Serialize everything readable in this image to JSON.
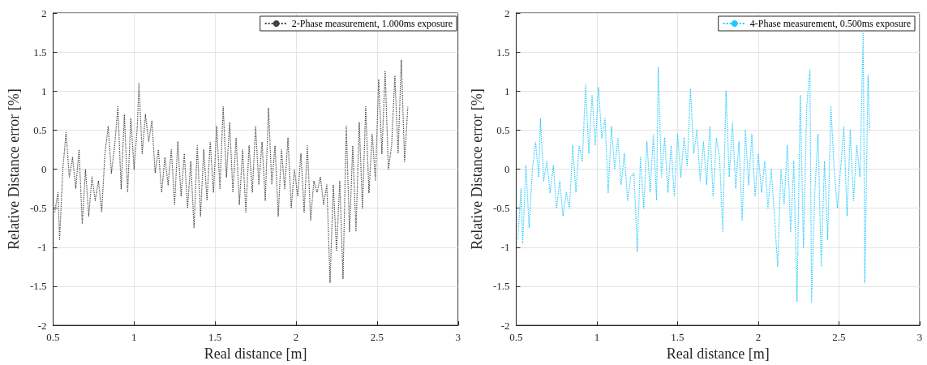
{
  "chart_data": [
    {
      "type": "line",
      "xlabel": "Real distance [m]",
      "ylabel": "Relative Distance error [%]",
      "xlim": [
        0.5,
        3
      ],
      "xticks": [
        0.5,
        1,
        1.5,
        2,
        2.5,
        3
      ],
      "ylim": [
        -2,
        2
      ],
      "yticks": [
        -2,
        -1.5,
        -1,
        -0.5,
        0,
        0.5,
        1,
        1.5,
        2
      ],
      "grid": true,
      "legend": "top right",
      "line_style": "dotted",
      "series": [
        {
          "name": "2-Phase measurement, 1.000ms exposure",
          "color": "#404040",
          "x": [
            0.51,
            0.53,
            0.54,
            0.56,
            0.58,
            0.6,
            0.62,
            0.64,
            0.66,
            0.68,
            0.7,
            0.72,
            0.74,
            0.76,
            0.78,
            0.8,
            0.82,
            0.84,
            0.86,
            0.88,
            0.9,
            0.92,
            0.94,
            0.96,
            0.98,
            1.0,
            1.02,
            1.03,
            1.05,
            1.07,
            1.09,
            1.11,
            1.13,
            1.15,
            1.17,
            1.19,
            1.21,
            1.23,
            1.25,
            1.27,
            1.29,
            1.31,
            1.33,
            1.35,
            1.37,
            1.39,
            1.41,
            1.43,
            1.45,
            1.47,
            1.49,
            1.51,
            1.53,
            1.55,
            1.57,
            1.59,
            1.61,
            1.63,
            1.65,
            1.67,
            1.69,
            1.71,
            1.73,
            1.75,
            1.77,
            1.79,
            1.81,
            1.83,
            1.85,
            1.87,
            1.89,
            1.91,
            1.93,
            1.95,
            1.97,
            1.99,
            2.01,
            2.03,
            2.05,
            2.07,
            2.09,
            2.11,
            2.13,
            2.15,
            2.17,
            2.19,
            2.21,
            2.23,
            2.25,
            2.27,
            2.29,
            2.31,
            2.33,
            2.35,
            2.37,
            2.39,
            2.41,
            2.43,
            2.45,
            2.47,
            2.49,
            2.51,
            2.53,
            2.55,
            2.57,
            2.59,
            2.61,
            2.63,
            2.65,
            2.67,
            2.69
          ],
          "values": [
            -0.55,
            -0.3,
            -0.9,
            0.0,
            0.47,
            -0.1,
            0.15,
            -0.25,
            0.25,
            -0.7,
            0.0,
            -0.6,
            -0.1,
            -0.4,
            -0.15,
            -0.55,
            0.2,
            0.55,
            -0.05,
            0.3,
            0.8,
            -0.25,
            0.7,
            -0.3,
            0.65,
            0.0,
            0.55,
            1.1,
            0.2,
            0.7,
            0.35,
            0.62,
            -0.05,
            0.25,
            -0.3,
            0.15,
            -0.2,
            0.25,
            -0.45,
            0.35,
            -0.35,
            0.2,
            -0.5,
            0.1,
            -0.75,
            0.3,
            -0.6,
            0.25,
            -0.4,
            0.35,
            -0.3,
            0.55,
            -0.25,
            0.8,
            -0.1,
            0.6,
            -0.3,
            0.4,
            -0.45,
            0.25,
            -0.55,
            0.3,
            -0.3,
            0.55,
            -0.2,
            0.35,
            -0.4,
            0.78,
            -0.2,
            0.3,
            -0.6,
            0.25,
            -0.25,
            0.4,
            -0.5,
            0.0,
            -0.35,
            0.2,
            -0.55,
            0.3,
            -0.65,
            -0.15,
            -0.3,
            -0.1,
            -0.45,
            -0.2,
            -1.45,
            -0.2,
            -1.05,
            -0.15,
            -1.4,
            0.55,
            -0.8,
            0.3,
            -0.8,
            0.6,
            -0.5,
            0.8,
            -0.3,
            0.45,
            -0.15,
            1.15,
            0.2,
            1.25,
            0.0,
            0.3,
            1.2,
            0.2,
            1.4,
            0.1,
            0.8
          ]
        }
      ]
    },
    {
      "type": "line",
      "xlabel": "Real distance [m]",
      "ylabel": "Relative Distance error [%]",
      "xlim": [
        0.5,
        3
      ],
      "xticks": [
        0.5,
        1,
        1.5,
        2,
        2.5,
        3
      ],
      "ylim": [
        -2,
        2
      ],
      "yticks": [
        -2,
        -1.5,
        -1,
        -0.5,
        0,
        0.5,
        1,
        1.5,
        2
      ],
      "grid": true,
      "legend": "top right",
      "line_style": "dotted",
      "series": [
        {
          "name": "4-Phase measurement, 0.500ms exposure",
          "color": "#1ec8ff",
          "x": [
            0.51,
            0.53,
            0.54,
            0.56,
            0.58,
            0.6,
            0.62,
            0.64,
            0.65,
            0.67,
            0.69,
            0.71,
            0.73,
            0.75,
            0.77,
            0.79,
            0.81,
            0.83,
            0.85,
            0.87,
            0.89,
            0.91,
            0.93,
            0.95,
            0.97,
            0.99,
            1.01,
            1.03,
            1.05,
            1.07,
            1.09,
            1.11,
            1.13,
            1.15,
            1.17,
            1.19,
            1.21,
            1.23,
            1.25,
            1.27,
            1.29,
            1.31,
            1.33,
            1.35,
            1.37,
            1.38,
            1.4,
            1.42,
            1.44,
            1.46,
            1.48,
            1.5,
            1.52,
            1.54,
            1.56,
            1.58,
            1.6,
            1.62,
            1.64,
            1.66,
            1.68,
            1.7,
            1.72,
            1.74,
            1.76,
            1.78,
            1.8,
            1.82,
            1.84,
            1.86,
            1.88,
            1.9,
            1.92,
            1.94,
            1.96,
            1.98,
            2.0,
            2.02,
            2.04,
            2.06,
            2.08,
            2.1,
            2.12,
            2.14,
            2.16,
            2.18,
            2.2,
            2.22,
            2.24,
            2.26,
            2.28,
            2.3,
            2.32,
            2.33,
            2.35,
            2.37,
            2.39,
            2.41,
            2.43,
            2.45,
            2.47,
            2.49,
            2.51,
            2.53,
            2.55,
            2.57,
            2.59,
            2.61,
            2.63,
            2.65,
            2.66,
            2.68,
            2.69
          ],
          "values": [
            -0.9,
            -0.25,
            -0.95,
            0.05,
            -0.75,
            0.0,
            0.35,
            -0.1,
            0.65,
            -0.15,
            0.1,
            -0.3,
            0.05,
            -0.5,
            -0.15,
            -0.6,
            -0.3,
            -0.5,
            0.3,
            -0.3,
            0.3,
            0.1,
            1.08,
            0.2,
            0.95,
            0.3,
            1.05,
            0.4,
            0.65,
            -0.3,
            0.55,
            0.0,
            0.4,
            -0.2,
            0.2,
            -0.4,
            -0.1,
            -0.05,
            -1.05,
            0.15,
            -0.5,
            0.35,
            -0.3,
            0.45,
            -0.4,
            1.3,
            -0.1,
            0.4,
            -0.3,
            0.3,
            -0.35,
            0.45,
            -0.1,
            0.4,
            0.05,
            1.03,
            0.2,
            0.5,
            -0.15,
            0.35,
            -0.2,
            0.55,
            -0.35,
            0.4,
            0.15,
            -0.8,
            1.0,
            -0.1,
            0.6,
            -0.25,
            0.35,
            -0.65,
            0.5,
            -0.2,
            0.45,
            -0.35,
            0.2,
            -0.3,
            0.1,
            -0.5,
            0.0,
            -0.6,
            -1.25,
            0.0,
            -0.45,
            0.3,
            -0.8,
            0.1,
            -1.7,
            0.95,
            -1.0,
            0.8,
            1.28,
            -1.7,
            -0.3,
            0.45,
            -1.25,
            0.1,
            -0.9,
            0.8,
            0.0,
            -0.5,
            0.0,
            0.55,
            -0.6,
            0.5,
            -0.4,
            0.3,
            -0.1,
            1.75,
            -1.45,
            1.2,
            0.5
          ]
        }
      ]
    }
  ]
}
